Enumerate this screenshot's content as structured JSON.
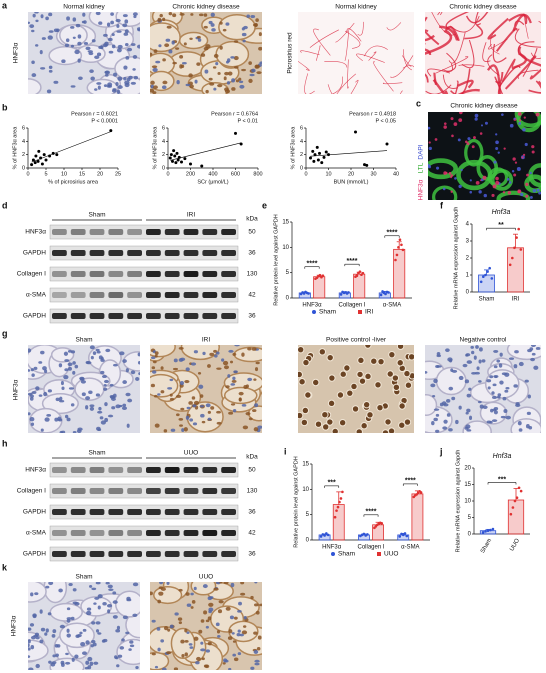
{
  "figure": {
    "a": {
      "letter": "a",
      "titles": [
        "Normal kidney",
        "Chronic kidney disease",
        "Normal kidney",
        "Chronic kidney disease"
      ],
      "row_labels": [
        "HNF3α",
        "Picrosirius red"
      ]
    },
    "b": {
      "letter": "b"
    },
    "c": {
      "letter": "c",
      "title": "Chronic kidney disease",
      "stains": [
        "HNF3α",
        "LTL",
        "DAPI"
      ]
    },
    "d": {
      "letter": "d",
      "groups": [
        "Sham",
        "IRI"
      ],
      "bands": [
        "HNF3α",
        "GAPDH",
        "Collagen I",
        "α-SMA",
        "GAPDH"
      ],
      "kda_label": "kDa",
      "kda": [
        50,
        36,
        130,
        42,
        36
      ]
    },
    "e": {
      "letter": "e"
    },
    "f": {
      "letter": "f"
    },
    "g": {
      "letter": "g",
      "titles": [
        "Sham",
        "IRI",
        "Positive control -liver",
        "Negative control"
      ],
      "row_label": "HNF3α"
    },
    "h": {
      "letter": "h",
      "groups": [
        "Sham",
        "UUO"
      ],
      "bands": [
        "HNF3α",
        "Collagen I",
        "GAPDH",
        "α-SMA",
        "GAPDH"
      ],
      "kda_label": "kDa",
      "kda": [
        50,
        130,
        36,
        42,
        36
      ]
    },
    "i": {
      "letter": "i"
    },
    "j": {
      "letter": "j"
    },
    "k": {
      "letter": "k",
      "titles": [
        "Sham",
        "UUO"
      ],
      "row_label": "HNF3α"
    }
  },
  "chart_data": [
    {
      "type": "scatter",
      "annotations": [
        "Pearson r = 0.6021",
        "P < 0.0001"
      ],
      "xlabel": "% of picrosirius area",
      "ylabel": "% of HNF3α area",
      "color": "#000000",
      "x": [
        1,
        1.5,
        2,
        2.2,
        2.8,
        3,
        3.5,
        4,
        4.5,
        5,
        6,
        7,
        8,
        23
      ],
      "values": [
        0.5,
        1.2,
        0.8,
        1.8,
        1.0,
        2.5,
        1.5,
        0.6,
        2.0,
        1.2,
        1.8,
        2.2,
        2.0,
        5.6
      ],
      "xlim": [
        0,
        25
      ],
      "xticks": [
        0,
        5,
        10,
        15,
        20,
        25
      ],
      "ylim": [
        0,
        6
      ],
      "yticks": [
        0,
        2,
        4,
        6
      ]
    },
    {
      "type": "scatter",
      "annotations": [
        "Pearson r = 0.6764",
        "P < 0.01"
      ],
      "xlabel": "SCr (μmol/L)",
      "ylabel": "% of HNF3α area",
      "color": "#000000",
      "x": [
        20,
        30,
        40,
        50,
        60,
        70,
        80,
        90,
        100,
        120,
        150,
        200,
        300,
        600,
        650
      ],
      "values": [
        1.5,
        2.0,
        1.0,
        2.6,
        1.8,
        0.8,
        2.2,
        1.2,
        1.6,
        0.9,
        1.4,
        0.6,
        0.3,
        5.2,
        3.6
      ],
      "xlim": [
        0,
        800
      ],
      "xticks": [
        0,
        200,
        400,
        600,
        800
      ],
      "ylim": [
        0,
        6
      ],
      "yticks": [
        0,
        2,
        4,
        6
      ]
    },
    {
      "type": "scatter",
      "annotations": [
        "Pearson r = 0.4918",
        "P < 0.05"
      ],
      "xlabel": "BUN (mmol/L)",
      "ylabel": "% of HNF3α area",
      "color": "#000000",
      "x": [
        2,
        3,
        3.5,
        4,
        5,
        5.5,
        6,
        7,
        8,
        9,
        10,
        22,
        26,
        27,
        36
      ],
      "values": [
        1.5,
        2.5,
        1,
        2,
        3.1,
        1.2,
        2.2,
        0.8,
        1.6,
        2.4,
        2.0,
        5.4,
        0.5,
        0.4,
        3.6
      ],
      "xlim": [
        0,
        40
      ],
      "xticks": [
        0,
        10,
        20,
        30,
        40
      ],
      "ylim": [
        0,
        6
      ],
      "yticks": [
        0,
        2,
        4,
        6
      ]
    },
    {
      "type": "bar",
      "ylabel": "Relative protein level against GAPDH",
      "categories": [
        "HNF3α",
        "Collagen I",
        "α-SMA"
      ],
      "series": [
        {
          "name": "Sham",
          "color": "#2f54d6",
          "values": [
            1,
            1,
            1
          ],
          "errors": [
            0.2,
            0.25,
            0.3
          ],
          "points": [
            [
              0.8,
              1.1,
              0.9,
              1.2,
              1.0,
              0.9
            ],
            [
              0.7,
              1.2,
              1.0,
              1.1,
              0.9,
              1.1
            ],
            [
              0.6,
              1.3,
              1.0,
              0.8,
              1.2,
              1.1
            ]
          ]
        },
        {
          "name": "IRI",
          "color": "#e03131",
          "values": [
            4.2,
            4.7,
            9.6
          ],
          "errors": [
            0.3,
            0.4,
            1.5
          ],
          "points": [
            [
              3.8,
              4.0,
              4.3,
              4.5,
              4.1,
              4.4
            ],
            [
              4.2,
              4.4,
              4.9,
              5.2,
              4.6,
              4.9
            ],
            [
              7.5,
              8.5,
              10,
              11.5,
              10.5,
              9.5
            ]
          ]
        }
      ],
      "significance": [
        "****",
        "****",
        "****"
      ],
      "ylim": [
        0,
        15
      ],
      "yticks": [
        0,
        5,
        10,
        15
      ]
    },
    {
      "type": "bar",
      "title": "Hnf3a",
      "ylabel": "Relative mRNA expression against Gapdh",
      "categories": [
        "Sham",
        "IRI"
      ],
      "colors": [
        "#2f54d6",
        "#e03131"
      ],
      "values": [
        1,
        2.6
      ],
      "errors": [
        0.3,
        0.8
      ],
      "points": [
        [
          0.6,
          0.9,
          1.0,
          1.2,
          1.4,
          0.8
        ],
        [
          1.6,
          2.0,
          2.6,
          3.2,
          3.7,
          2.5
        ]
      ],
      "significance": [
        "**"
      ],
      "ylim": [
        0,
        4
      ],
      "yticks": [
        0,
        1,
        2,
        3,
        4
      ]
    },
    {
      "type": "bar",
      "ylabel": "Relative protein level against GAPDH",
      "categories": [
        "HNF3α",
        "Collagen I",
        "α-SMA"
      ],
      "series": [
        {
          "name": "Sham",
          "color": "#2f54d6",
          "values": [
            1,
            1,
            1
          ],
          "errors": [
            0.2,
            0.2,
            0.3
          ],
          "points": [
            [
              0.7,
              1.1,
              0.9,
              1.3,
              1.0
            ],
            [
              0.8,
              1.0,
              1.2,
              0.9,
              1.1
            ],
            [
              0.7,
              1.2,
              1.0,
              1.3,
              0.8
            ]
          ]
        },
        {
          "name": "UUO",
          "color": "#e03131",
          "values": [
            7,
            3,
            9.1
          ],
          "errors": [
            2.5,
            0.5,
            0.6
          ],
          "points": [
            [
              4.5,
              5.8,
              6.5,
              7.5,
              8.2,
              9.5
            ],
            [
              2.4,
              2.7,
              3.0,
              3.2,
              3.4,
              3.3
            ],
            [
              8.5,
              8.8,
              9,
              9.3,
              9.6,
              9.4
            ]
          ]
        }
      ],
      "significance": [
        "***",
        "****",
        "****"
      ],
      "ylim": [
        0,
        15
      ],
      "yticks": [
        0,
        5,
        10,
        15
      ]
    },
    {
      "type": "bar",
      "title": "Hnf3a",
      "ylabel": "Relative mRNA expression against Gapdh",
      "categories": [
        "Sham",
        "UUO"
      ],
      "colors": [
        "#2f54d6",
        "#e03131"
      ],
      "values": [
        1,
        10.3
      ],
      "errors": [
        0.4,
        3.5
      ],
      "points": [
        [
          0.5,
          0.8,
          1.0,
          1.2,
          1.5
        ],
        [
          6,
          8,
          10,
          11,
          14,
          13
        ]
      ],
      "significance": [
        "***"
      ],
      "ylim": [
        0,
        20
      ],
      "yticks": [
        0,
        5,
        10,
        15,
        20
      ]
    }
  ]
}
